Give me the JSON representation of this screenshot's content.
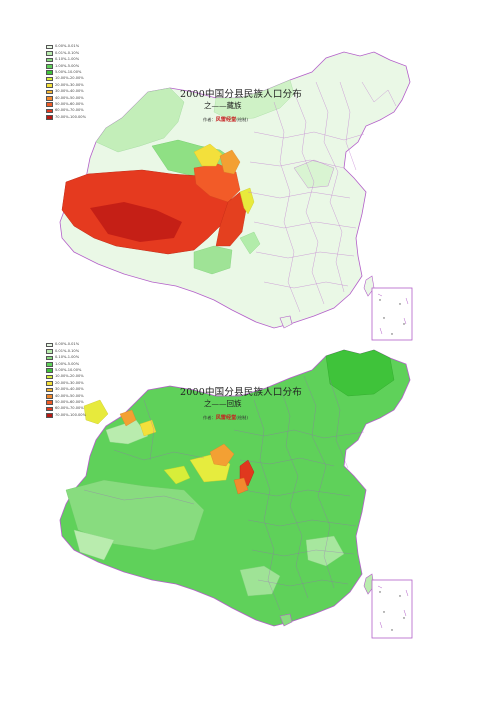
{
  "legend_entries": [
    "0.00%-0.01%",
    "0.01%-0.10%",
    "0.10%-1.00%",
    "1.00%-5.00%",
    "5.00%-10.00%",
    "10.00%-20.00%",
    "20.00%-30.00%",
    "30.00%-40.00%",
    "40.00%-50.00%",
    "50.00%-60.00%",
    "60.00%-70.00%",
    "70.00%-100.00%"
  ],
  "legend_colors": [
    "#e8f8e4",
    "#b9ecae",
    "#88dc7f",
    "#5fd15a",
    "#3fc33a",
    "#d7ee3a",
    "#f5e13a",
    "#f5b634",
    "#f28a2e",
    "#ee5a25",
    "#e0381e",
    "#b81a14"
  ],
  "maps": [
    {
      "title": "2000中国分县民族人口分布",
      "subtitle": "之——藏族",
      "author_prefix": "作者：",
      "author_name": "风雷经堂",
      "author_suffix": "(绘制)"
    },
    {
      "title": "2000中国分县民族人口分布",
      "subtitle": "之——回族",
      "author_prefix": "作者：",
      "author_name": "风雷经堂",
      "author_suffix": "(绘制)"
    }
  ]
}
